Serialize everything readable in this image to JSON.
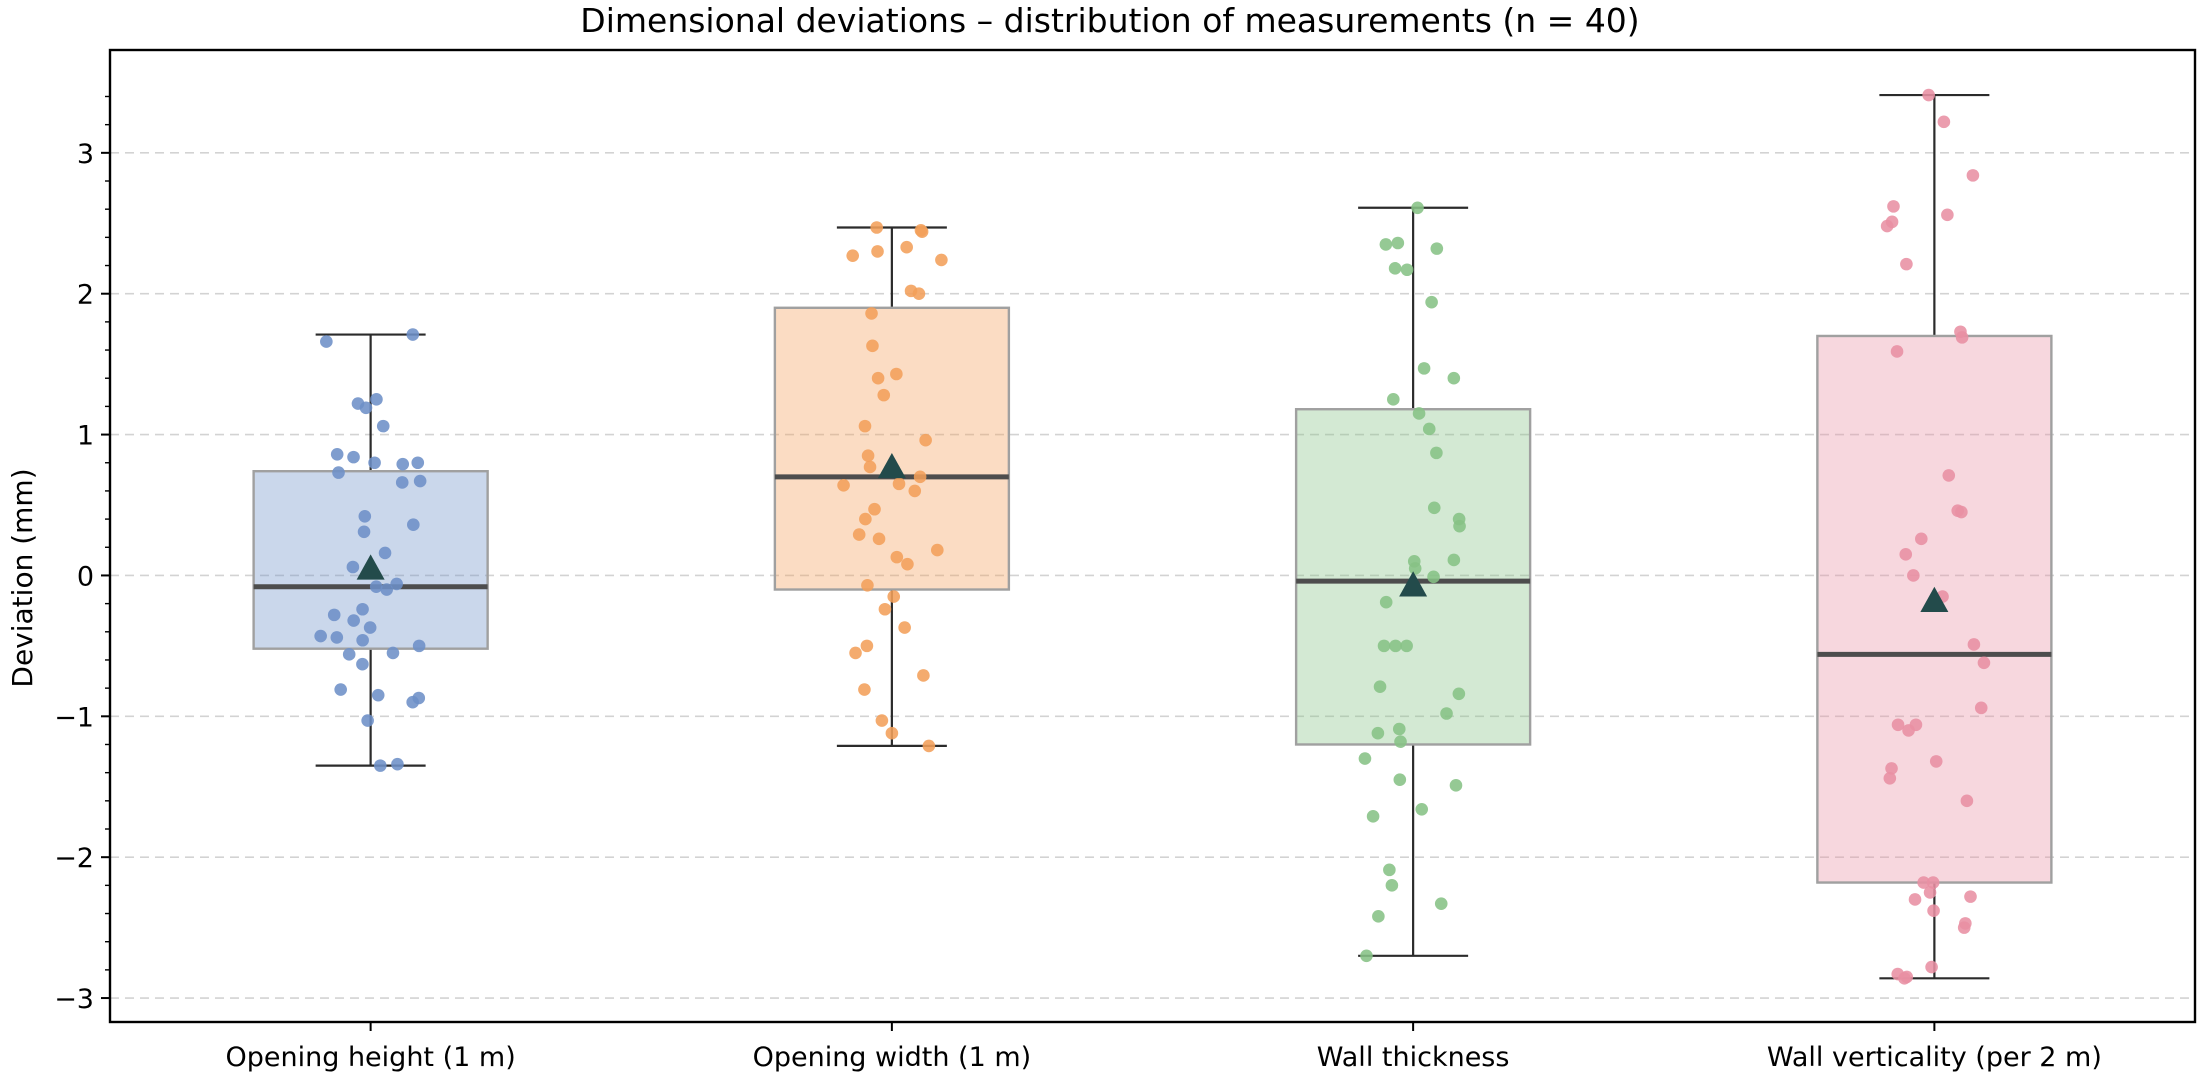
{
  "chart_data": {
    "type": "box",
    "title": "Dimensional deviations – distribution of measurements (n = 40)",
    "xlabel": "",
    "ylabel": "Deviation (mm)",
    "ylim": [
      -3.17,
      3.73
    ],
    "yticks": [
      -3,
      -2,
      -1,
      0,
      1,
      2,
      3
    ],
    "ytick_labels": [
      "−3",
      "−2",
      "−1",
      "0",
      "1",
      "2",
      "3"
    ],
    "grid": "horizontal dashed",
    "categories": [
      "Opening height (1 m)",
      "Opening width (1 m)",
      "Wall thickness",
      "Wall verticality (per 2 m)"
    ],
    "colors": [
      "#6d8fc7",
      "#f39f5a",
      "#86c285",
      "#e88fa3"
    ],
    "mean_marker_color": "#234b4b",
    "boxes": [
      {
        "name": "Opening height (1 m)",
        "whisker_low": -1.35,
        "q1": -0.52,
        "median": -0.08,
        "q3": 0.74,
        "whisker_high": 1.71,
        "mean": 0.05
      },
      {
        "name": "Opening width (1 m)",
        "whisker_low": -1.21,
        "q1": -0.1,
        "median": 0.7,
        "q3": 1.9,
        "whisker_high": 2.47,
        "mean": 0.77
      },
      {
        "name": "Wall thickness",
        "whisker_low": -2.7,
        "q1": -1.2,
        "median": -0.04,
        "q3": 1.18,
        "whisker_high": 2.61,
        "mean": -0.07
      },
      {
        "name": "Wall verticality (per 2 m)",
        "whisker_low": -2.86,
        "q1": -2.18,
        "median": -0.56,
        "q3": 1.7,
        "whisker_high": 3.41,
        "mean": -0.18
      }
    ],
    "points": [
      [
        1.71,
        1.66,
        1.25,
        1.22,
        1.19,
        1.06,
        0.86,
        0.84,
        0.8,
        0.8,
        0.79,
        0.73,
        0.67,
        0.66,
        0.42,
        0.36,
        0.31,
        0.16,
        0.06,
        -0.06,
        -0.08,
        -0.1,
        -0.24,
        -0.28,
        -0.32,
        -0.37,
        -0.43,
        -0.44,
        -0.46,
        -0.5,
        -0.55,
        -0.56,
        -0.63,
        -0.81,
        -0.85,
        -0.87,
        -0.9,
        -1.03,
        -1.34,
        -1.35
      ],
      [
        2.47,
        2.45,
        2.44,
        2.33,
        2.3,
        2.27,
        2.24,
        2.02,
        2.0,
        1.86,
        1.63,
        1.43,
        1.4,
        1.28,
        1.06,
        0.96,
        0.85,
        0.77,
        0.65,
        0.64,
        0.47,
        0.4,
        0.29,
        0.26,
        0.18,
        0.13,
        0.08,
        -0.07,
        -0.15,
        -0.24,
        -0.37,
        -0.5,
        -0.55,
        -0.71,
        -0.81,
        -1.03,
        -1.12,
        -1.21,
        0.7,
        0.6
      ],
      [
        2.61,
        2.36,
        2.35,
        2.32,
        2.18,
        2.17,
        1.94,
        1.47,
        1.4,
        1.25,
        1.15,
        1.04,
        0.87,
        0.48,
        0.4,
        0.35,
        0.11,
        0.1,
        0.05,
        -0.01,
        -0.19,
        -0.5,
        -0.5,
        -0.5,
        -0.79,
        -0.84,
        -0.98,
        -1.09,
        -1.12,
        -1.18,
        -1.3,
        -1.45,
        -1.49,
        -1.66,
        -1.71,
        -2.09,
        -2.2,
        -2.33,
        -2.42,
        -2.7
      ],
      [
        3.41,
        3.22,
        2.84,
        2.62,
        2.56,
        2.51,
        2.48,
        2.21,
        1.73,
        1.69,
        1.59,
        0.71,
        0.46,
        0.45,
        0.26,
        0.15,
        0.0,
        -0.15,
        -0.49,
        -0.62,
        -0.94,
        -1.06,
        -1.06,
        -1.1,
        -1.32,
        -1.37,
        -1.44,
        -1.6,
        -2.18,
        -2.18,
        -2.25,
        -2.28,
        -2.3,
        -2.38,
        -2.47,
        -2.5,
        -2.78,
        -2.83,
        -2.85,
        -2.86
      ]
    ]
  }
}
